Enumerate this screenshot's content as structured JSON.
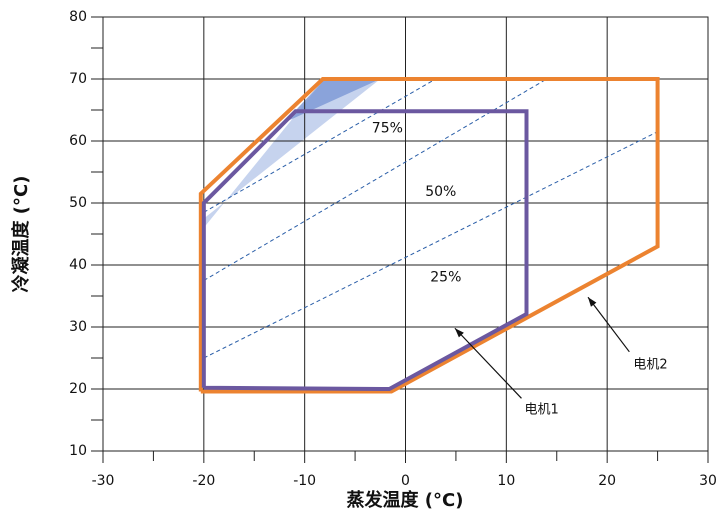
{
  "chart_data": {
    "type": "line",
    "xlabel": "蒸发温度 (°C)",
    "ylabel": "冷凝温度 (°C)",
    "xlim": [
      -30,
      30
    ],
    "xticks": [
      -30,
      -20,
      -10,
      0,
      10,
      20,
      30
    ],
    "ylim": [
      10,
      80
    ],
    "yticks": [
      10,
      20,
      30,
      40,
      50,
      60,
      70,
      80
    ],
    "grid": true,
    "areas": [
      {
        "color": "#bccbeb",
        "x": [
          -20,
          -8,
          -2.5,
          -20
        ],
        "values": [
          46,
          70,
          70,
          47.5
        ]
      },
      {
        "color": "#7f9ad6",
        "x": [
          -12,
          -8,
          -2.5
        ],
        "values": [
          63,
          70,
          70
        ]
      }
    ],
    "series": [
      {
        "name": "75%",
        "color": "#2a5ea8",
        "dashed": true,
        "x": [
          -20,
          3
        ],
        "values": [
          48.5,
          70
        ]
      },
      {
        "name": "50%",
        "color": "#2a5ea8",
        "dashed": true,
        "x": [
          -20,
          14
        ],
        "values": [
          37.5,
          70
        ]
      },
      {
        "name": "25%",
        "color": "#2a5ea8",
        "dashed": true,
        "x": [
          -20,
          25
        ],
        "values": [
          25,
          61.5
        ]
      },
      {
        "name": "电机2",
        "color": "#ec8330",
        "x": [
          -20.3,
          -20.3,
          -8.2,
          25,
          25,
          -1.4,
          -20.3
        ],
        "values": [
          19.6,
          51.5,
          70,
          70,
          43,
          19.6,
          19.6
        ]
      },
      {
        "name": "电机1",
        "color": "#6b58a0",
        "x": [
          -20,
          -20,
          -10.9,
          12,
          12,
          -1.6,
          -20
        ],
        "values": [
          20.2,
          50,
          64.8,
          64.8,
          32.1,
          20,
          20.2
        ]
      }
    ]
  }
}
